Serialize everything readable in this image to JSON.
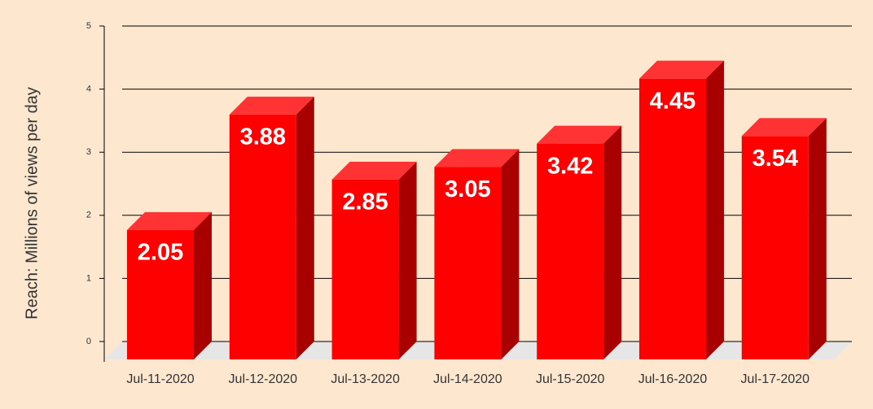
{
  "chart_data": {
    "type": "bar3d",
    "y_label": "Reach: Millions of views per day",
    "categories": [
      "Jul-11-2020",
      "Jul-12-2020",
      "Jul-13-2020",
      "Jul-14-2020",
      "Jul-15-2020",
      "Jul-16-2020",
      "Jul-17-2020"
    ],
    "values": [
      2.05,
      3.88,
      2.85,
      3.05,
      3.42,
      4.45,
      3.54
    ],
    "color": "#ff0000",
    "ylim": [
      0,
      5
    ],
    "yticks": [
      0,
      1,
      2,
      3,
      4,
      5
    ],
    "grid": true
  }
}
